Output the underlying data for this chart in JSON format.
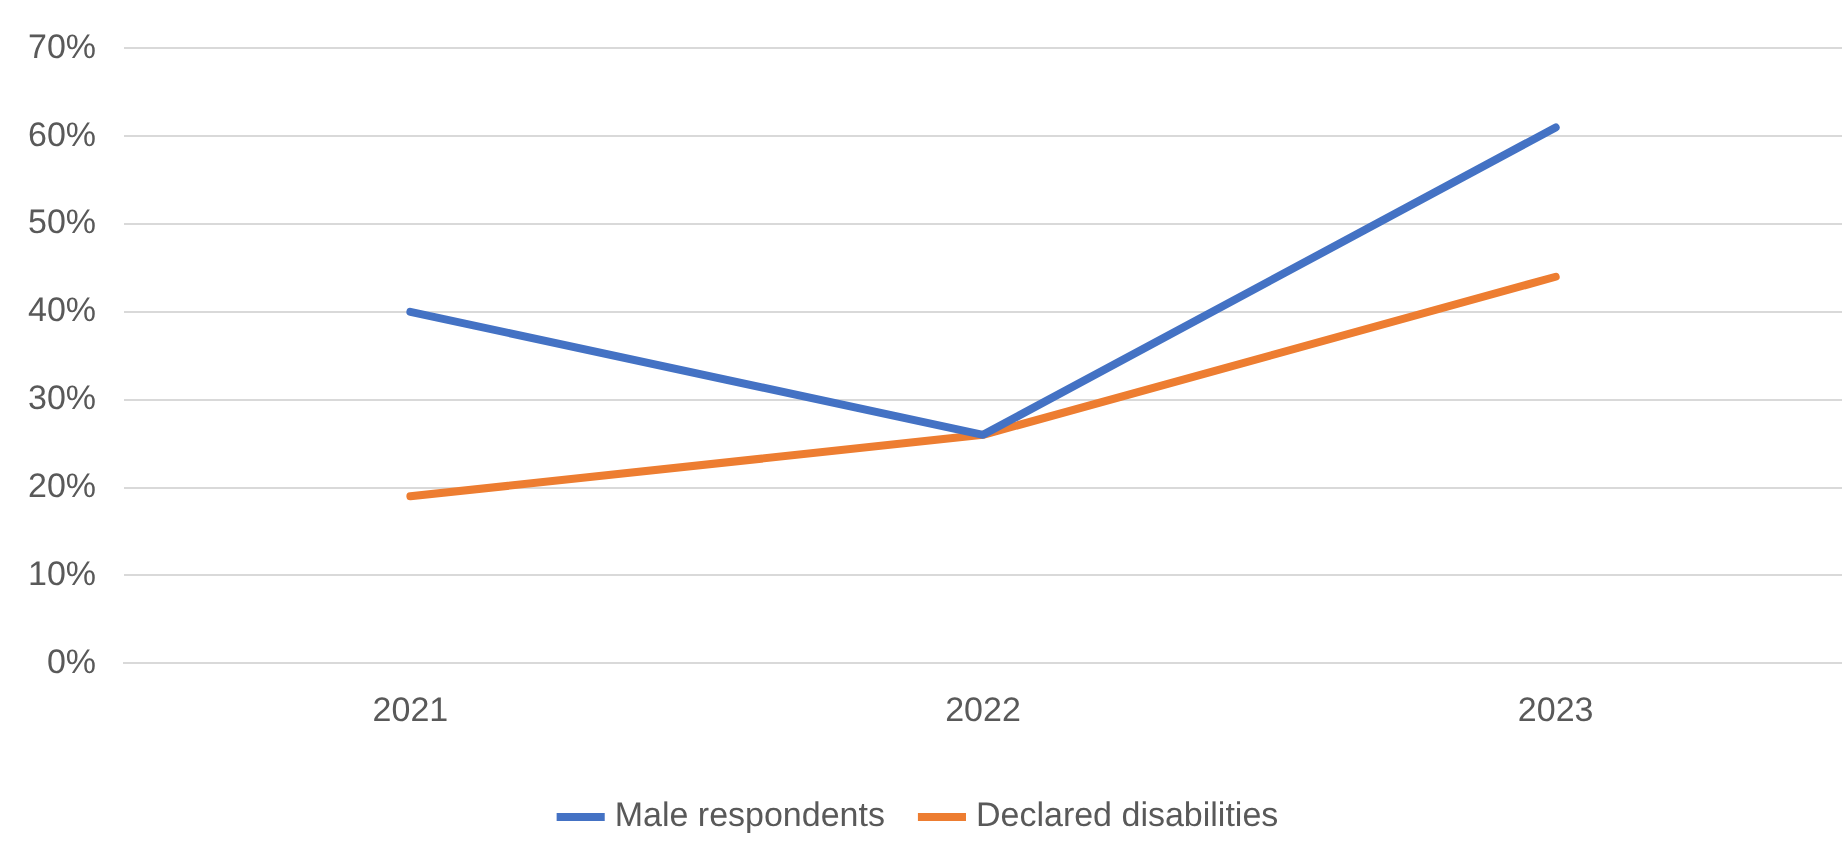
{
  "chart_data": {
    "type": "line",
    "categories": [
      "2021",
      "2022",
      "2023"
    ],
    "series": [
      {
        "name": "Male respondents",
        "color": "#4472c4",
        "values": [
          40,
          26,
          61
        ]
      },
      {
        "name": "Declared disabilities",
        "color": "#ed7d31",
        "values": [
          19,
          26,
          44
        ]
      }
    ],
    "ylim": [
      0,
      70
    ],
    "yticks": [
      {
        "value": 0,
        "label": "0%"
      },
      {
        "value": 10,
        "label": "10%"
      },
      {
        "value": 20,
        "label": "20%"
      },
      {
        "value": 30,
        "label": "30%"
      },
      {
        "value": 40,
        "label": "40%"
      },
      {
        "value": 50,
        "label": "50%"
      },
      {
        "value": 60,
        "label": "60%"
      },
      {
        "value": 70,
        "label": "70%"
      }
    ],
    "grid": "y",
    "legend": "bottom",
    "marker": "none",
    "line_style": "solid"
  }
}
